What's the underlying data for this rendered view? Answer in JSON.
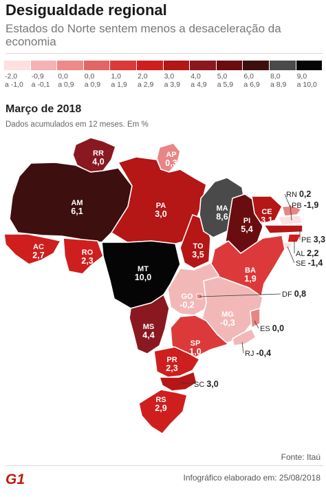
{
  "header": {
    "title": "Desigualdade regional",
    "subtitle": "Estados do Norte sentem menos a desaceleração da economia"
  },
  "legend": [
    {
      "l1": "-2,0",
      "l2": "a -1,0",
      "color": "#fde0e0"
    },
    {
      "l1": "-0,9",
      "l2": "a -0,1",
      "color": "#f6b2b2"
    },
    {
      "l1": "0,0",
      "l2": "a 0,9",
      "color": "#ec8a8a"
    },
    {
      "l1": "0,0",
      "l2": "a 0,9",
      "color": "#e36666"
    },
    {
      "l1": "1,0",
      "l2": "a 1,9",
      "color": "#dc3a3a"
    },
    {
      "l1": "2,0",
      "l2": "a 2,9",
      "color": "#cf1e1e"
    },
    {
      "l1": "3,0",
      "l2": "a 3,9",
      "color": "#b51616"
    },
    {
      "l1": "4,0",
      "l2": "a 4,9",
      "color": "#8a1820"
    },
    {
      "l1": "5,0",
      "l2": "a 5,9",
      "color": "#6a0d10"
    },
    {
      "l1": "6,0",
      "l2": "a 6,9",
      "color": "#3e0f0f"
    },
    {
      "l1": "8,0",
      "l2": "a 8,9",
      "color": "#4a4a4a"
    },
    {
      "l1": "9,0",
      "l2": "a 10,0",
      "color": "#050505"
    }
  ],
  "map_info": {
    "section": "Março de 2018",
    "note": "Dados acumulados em 12 meses.  Em %"
  },
  "states": {
    "RR": {
      "abbr": "RR",
      "value": "4,0",
      "color": "#8a1820"
    },
    "AP": {
      "abbr": "AP",
      "value": "0,3",
      "color": "#e98585"
    },
    "AM": {
      "abbr": "AM",
      "value": "6,1",
      "color": "#3e0f0f"
    },
    "PA": {
      "abbr": "PA",
      "value": "3,0",
      "color": "#b51616"
    },
    "AC": {
      "abbr": "AC",
      "value": "2,7",
      "color": "#cf1e1e"
    },
    "RO": {
      "abbr": "RO",
      "value": "2,3",
      "color": "#cf1e1e"
    },
    "MT": {
      "abbr": "MT",
      "value": "10,0",
      "color": "#050505"
    },
    "TO": {
      "abbr": "TO",
      "value": "3,5",
      "color": "#b51616"
    },
    "MA": {
      "abbr": "MA",
      "value": "8,6",
      "color": "#4a4a4a"
    },
    "PI": {
      "abbr": "PI",
      "value": "5,4",
      "color": "#6a0d10"
    },
    "CE": {
      "abbr": "CE",
      "value": "3,1",
      "color": "#b51616"
    },
    "RN": {
      "abbr": "RN",
      "value": "0,2",
      "color": "#e98585"
    },
    "PB": {
      "abbr": "PB",
      "value": "-1,9",
      "color": "#fde0e0"
    },
    "PE": {
      "abbr": "PE",
      "value": "3,3",
      "color": "#b51616"
    },
    "AL": {
      "abbr": "AL",
      "value": "2,2",
      "color": "#cf1e1e"
    },
    "SE": {
      "abbr": "SE",
      "value": "-1,4",
      "color": "#fde0e0"
    },
    "BA": {
      "abbr": "BA",
      "value": "1,9",
      "color": "#dc3a3a"
    },
    "GO": {
      "abbr": "GO",
      "value": "-0,2",
      "color": "#f2b8b8"
    },
    "DF": {
      "abbr": "DF",
      "value": "0,8",
      "color": "#e98585"
    },
    "MG": {
      "abbr": "MG",
      "value": "-0,3",
      "color": "#f2b8b8"
    },
    "ES": {
      "abbr": "ES",
      "value": "0,0",
      "color": "#e98585"
    },
    "RJ": {
      "abbr": "RJ",
      "value": "-0,4",
      "color": "#f2b8b8"
    },
    "MS": {
      "abbr": "MS",
      "value": "4,4",
      "color": "#8a1820"
    },
    "SP": {
      "abbr": "SP",
      "value": "1,0",
      "color": "#dc3a3a"
    },
    "PR": {
      "abbr": "PR",
      "value": "2,3",
      "color": "#cf1e1e"
    },
    "SC": {
      "abbr": "SC",
      "value": "3,0",
      "color": "#b51616"
    },
    "RS": {
      "abbr": "RS",
      "value": "2,9",
      "color": "#cf1e1e"
    }
  },
  "footer": {
    "source": "Fonte: Itaú",
    "credit": "Infográfico elaborado em: 25/08/2018",
    "logo_text": "G1",
    "logo_color": "#c4170c"
  }
}
